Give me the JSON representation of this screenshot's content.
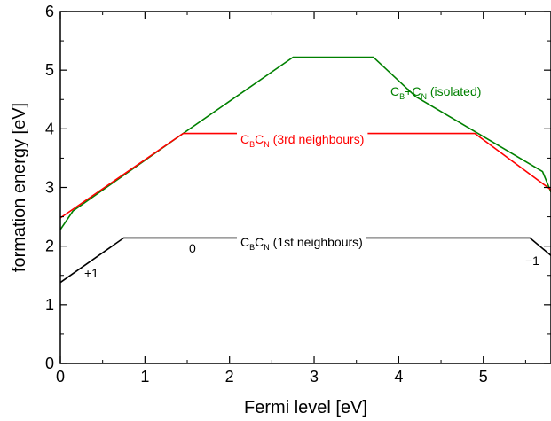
{
  "chart_data": {
    "type": "line",
    "xlabel": "Fermi level [eV]",
    "ylabel": "formation energy [eV]",
    "xlim": [
      0,
      5.8
    ],
    "ylim": [
      0,
      6
    ],
    "x_ticks": [
      "0",
      "1",
      "2",
      "3",
      "4",
      "5"
    ],
    "y_ticks": [
      "0",
      "1",
      "2",
      "3",
      "4",
      "5",
      "6"
    ],
    "grid": false,
    "legend": "none",
    "series": [
      {
        "color": "#008000",
        "points": [
          [
            0,
            2.28
          ],
          [
            0.15,
            2.6
          ],
          [
            1.45,
            3.92
          ],
          [
            2.75,
            5.22
          ],
          [
            3.7,
            5.22
          ],
          [
            4.2,
            4.55
          ],
          [
            5.7,
            3.27
          ],
          [
            5.8,
            2.92
          ]
        ]
      },
      {
        "color": "#ff0000",
        "points": [
          [
            0,
            2.48
          ],
          [
            1.45,
            3.92
          ],
          [
            4.9,
            3.92
          ],
          [
            5.8,
            2.96
          ]
        ]
      },
      {
        "color": "#000000",
        "points": [
          [
            0,
            1.38
          ],
          [
            0.75,
            2.14
          ],
          [
            5.55,
            2.14
          ],
          [
            5.8,
            1.84
          ]
        ]
      }
    ],
    "annotations": [
      {
        "id": "green",
        "main1": "C",
        "sub1": "B",
        "main2": "+C",
        "sub2": "N",
        "tail": " (isolated)",
        "color": "#008000"
      },
      {
        "id": "red",
        "main1": "C",
        "sub1": "B",
        "main2": "C",
        "sub2": "N",
        "tail": " (3rd neighbours)",
        "color": "#ff0000"
      },
      {
        "id": "black",
        "main1": "C",
        "sub1": "B",
        "main2": "C",
        "sub2": "N",
        "tail": " (1st neighbours)",
        "color": "#000000"
      }
    ],
    "charge_labels": [
      "+1",
      "0",
      "−1"
    ]
  }
}
